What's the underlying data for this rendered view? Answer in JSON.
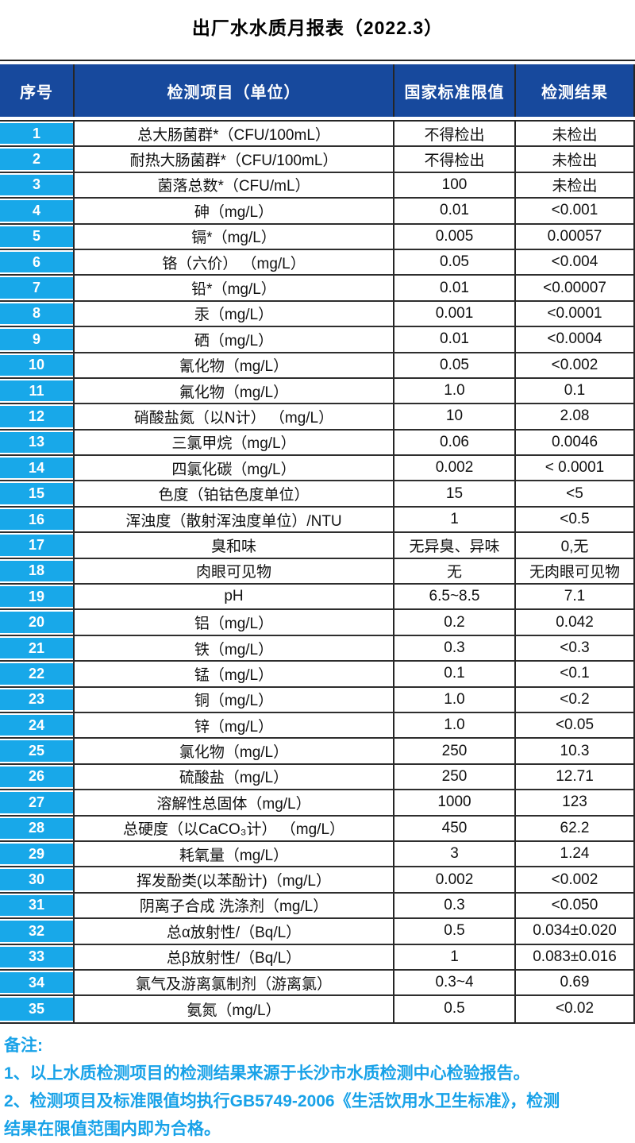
{
  "title": "出厂水水质月报表（2022.3）",
  "table": {
    "headers": [
      "序号",
      "检测项目（单位）",
      "国家标准限值",
      "检测结果"
    ],
    "rows": [
      [
        "1",
        "总大肠菌群*（CFU/100mL）",
        "不得检出",
        "未检出"
      ],
      [
        "2",
        "耐热大肠菌群*（CFU/100mL）",
        "不得检出",
        "未检出"
      ],
      [
        "3",
        "菌落总数*（CFU/mL）",
        "100",
        "未检出"
      ],
      [
        "4",
        "砷（mg/L）",
        "0.01",
        "<0.001"
      ],
      [
        "5",
        "镉*（mg/L）",
        "0.005",
        "0.00057"
      ],
      [
        "6",
        "铬（六价） （mg/L）",
        "0.05",
        "<0.004"
      ],
      [
        "7",
        "铅*（mg/L）",
        "0.01",
        "<0.00007"
      ],
      [
        "8",
        "汞（mg/L）",
        "0.001",
        "<0.0001"
      ],
      [
        "9",
        "硒（mg/L）",
        "0.01",
        "<0.0004"
      ],
      [
        "10",
        "氰化物（mg/L）",
        "0.05",
        "<0.002"
      ],
      [
        "11",
        "氟化物（mg/L）",
        "1.0",
        "0.1"
      ],
      [
        "12",
        "硝酸盐氮（以N计） （mg/L）",
        "10",
        "2.08"
      ],
      [
        "13",
        "三氯甲烷（mg/L）",
        "0.06",
        "0.0046"
      ],
      [
        "14",
        "四氯化碳（mg/L）",
        "0.002",
        "< 0.0001"
      ],
      [
        "15",
        "色度（铂钴色度单位）",
        "15",
        "<5"
      ],
      [
        "16",
        "浑浊度（散射浑浊度单位）/NTU",
        "1",
        "<0.5"
      ],
      [
        "17",
        "臭和味",
        "无异臭、异味",
        "0,无"
      ],
      [
        "18",
        "肉眼可见物",
        "无",
        "无肉眼可见物"
      ],
      [
        "19",
        "pH",
        "6.5~8.5",
        "7.1"
      ],
      [
        "20",
        "铝（mg/L）",
        "0.2",
        "0.042"
      ],
      [
        "21",
        "铁（mg/L）",
        "0.3",
        "<0.3"
      ],
      [
        "22",
        "锰（mg/L）",
        "0.1",
        "<0.1"
      ],
      [
        "23",
        "铜（mg/L）",
        "1.0",
        "<0.2"
      ],
      [
        "24",
        "锌（mg/L）",
        "1.0",
        "<0.05"
      ],
      [
        "25",
        "氯化物（mg/L）",
        "250",
        "10.3"
      ],
      [
        "26",
        "硫酸盐（mg/L）",
        "250",
        "12.71"
      ],
      [
        "27",
        "溶解性总固体（mg/L）",
        "1000",
        "123"
      ],
      [
        "28",
        "总硬度（以CaCO₃计） （mg/L）",
        "450",
        "62.2"
      ],
      [
        "29",
        "耗氧量（mg/L）",
        "3",
        "1.24"
      ],
      [
        "30",
        "挥发酚类(以苯酚计)（mg/L）",
        "0.002",
        "<0.002"
      ],
      [
        "31",
        "阴离子合成 洗涤剂（mg/L）",
        "0.3",
        "<0.050"
      ],
      [
        "32",
        "总α放射性/（Bq/L）",
        "0.5",
        "0.034±0.020"
      ],
      [
        "33",
        "总β放射性/（Bq/L）",
        "1",
        "0.083±0.016"
      ],
      [
        "34",
        "氯气及游离氯制剂（游离氯）",
        "0.3~4",
        "0.69"
      ],
      [
        "35",
        "氨氮（mg/L）",
        "0.5",
        "<0.02"
      ]
    ]
  },
  "notes": {
    "label": "备注:",
    "lines": [
      "1、以上水质检测项目的检测结果来源于长沙市水质检测中心检验报告。",
      "2、检测项目及标准限值均执行GB5749-2006《生活饮用水卫生标准》，检测",
      "结果在限值范围内即为合格。"
    ]
  },
  "colors": {
    "header_blue": "#17499d",
    "index_cyan": "#18a8e9",
    "note_cyan": "#18a2e8",
    "border_dark": "#262626"
  }
}
